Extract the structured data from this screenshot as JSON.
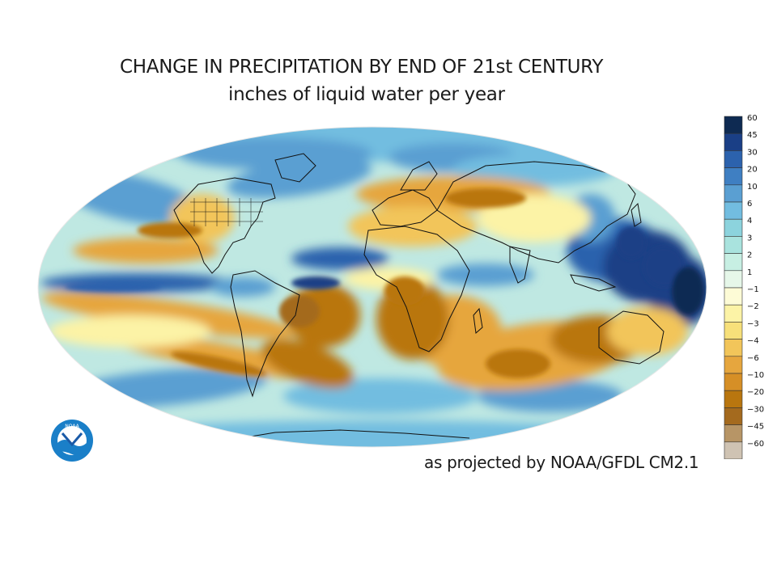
{
  "title": "CHANGE IN PRECIPITATION BY END OF 21st CENTURY",
  "subtitle": "inches of liquid water per year",
  "credit": "as projected by NOAA/GFDL CM2.1",
  "logo_text": "NOAA",
  "legend": {
    "labels": [
      "60",
      "45",
      "30",
      "20",
      "10",
      "6",
      "4",
      "3",
      "2",
      "1",
      "−1",
      "−2",
      "−3",
      "−4",
      "−6",
      "−10",
      "−20",
      "−30",
      "−45",
      "−60"
    ],
    "colors": [
      "#0e2a52",
      "#1a3f86",
      "#2c62ad",
      "#3f7fc2",
      "#5a9fd2",
      "#72bde0",
      "#8cd3dd",
      "#a9e3de",
      "#c7efe3",
      "#e6f7e9",
      "#fdfbd6",
      "#fcf3a6",
      "#f7e07a",
      "#f2c55a",
      "#e6a63e",
      "#d68f26",
      "#b9760f",
      "#a46a1e",
      "#b79566",
      "#cfc3b3"
    ]
  },
  "colors": {
    "ocean_base": "#bfe8e2",
    "wet": "#5fa8d6",
    "very_wet": "#1f4fa0",
    "dry": "#d9962e",
    "slightly_dry": "#f5e08a",
    "coast": "#111111",
    "noaa_blue": "#1a7fc8"
  }
}
